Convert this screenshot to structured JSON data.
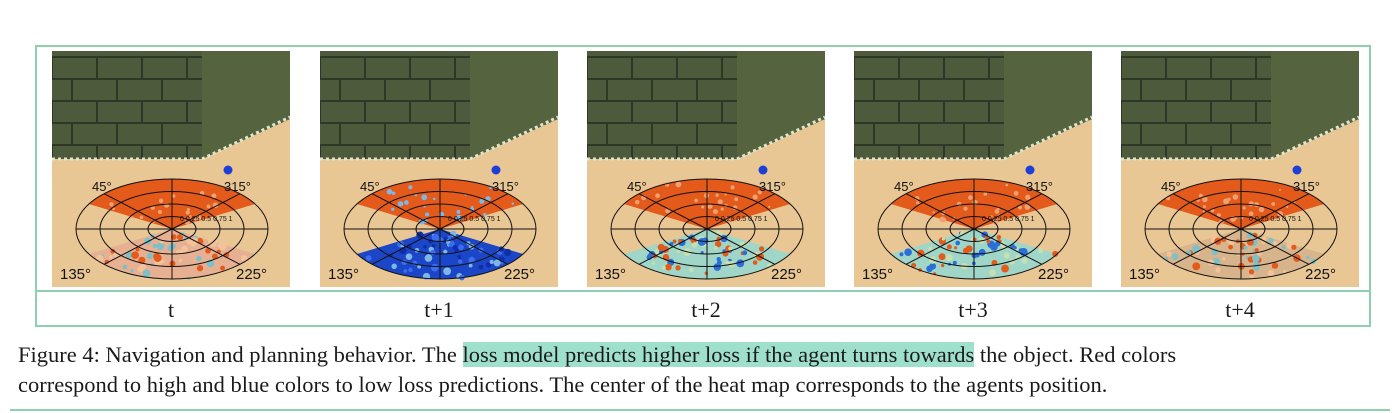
{
  "panels": [
    {
      "label": "t",
      "front": "#e35a1a",
      "back": "#e7b093",
      "back_mix": "mixed"
    },
    {
      "label": "t+1",
      "front": "#e35a1a",
      "back": "#1c46c8",
      "back_mix": "blue"
    },
    {
      "label": "t+2",
      "front": "#e35a1a",
      "back": "#9fd6c8",
      "back_mix": "teal"
    },
    {
      "label": "t+3",
      "front": "#e35a1a",
      "back": "#9fd6c8",
      "back_mix": "teal"
    },
    {
      "label": "t+4",
      "front": "#e35a1a",
      "back": "#d8b48c",
      "back_mix": "mixed"
    }
  ],
  "polar_labels": {
    "a45": "45°",
    "a315": "315°",
    "a135": "135°",
    "a225": "225°",
    "radii": "0 0.25 0.5 0.75 1"
  },
  "caption": {
    "prefix": "Figure 4: Navigation and planning behavior. The ",
    "highlight": "loss model predicts higher loss if the agent turns towards",
    "suffix": " the object. Red colors",
    "line2": "correspond to high and blue colors to low loss predictions. The center of the heat map corresponds to the agents position."
  },
  "colors": {
    "frame": "#8fcfae",
    "highlight": "#9fe0cd",
    "wall": "#4d5a3c",
    "floor": "#e9c795",
    "object": "#1d3fd6"
  }
}
